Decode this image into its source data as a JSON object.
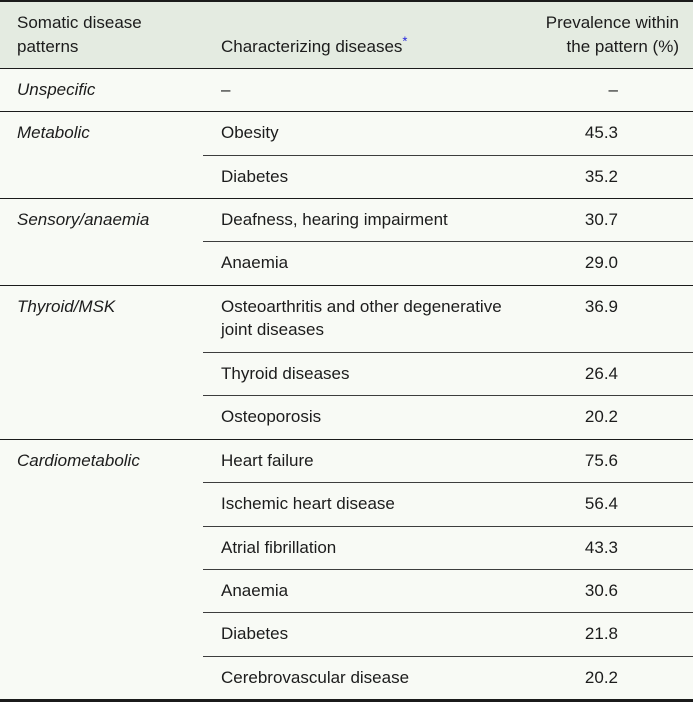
{
  "colors": {
    "header_bg": "#e4ebe1",
    "body_bg": "#f8faf5",
    "border_strong": "#1b1b1b",
    "border_inner": "#3d3d3d",
    "text": "#1c1c1c",
    "footnote_accent": "#2222dd"
  },
  "header": {
    "pattern_col": "Somatic disease patterns",
    "diseases_col": "Characterizing diseases",
    "diseases_footnote_marker": "*",
    "prevalence_col": "Prevalence within the pattern (%)"
  },
  "groups": [
    {
      "pattern": "Unspecific",
      "rows": [
        {
          "disease": "–",
          "prevalence": "–"
        }
      ]
    },
    {
      "pattern": "Metabolic",
      "rows": [
        {
          "disease": "Obesity",
          "prevalence": "45.3"
        },
        {
          "disease": "Diabetes",
          "prevalence": "35.2"
        }
      ]
    },
    {
      "pattern": "Sensory/anaemia",
      "rows": [
        {
          "disease": "Deafness, hearing impairment",
          "prevalence": "30.7"
        },
        {
          "disease": "Anaemia",
          "prevalence": "29.0"
        }
      ]
    },
    {
      "pattern": "Thyroid/MSK",
      "rows": [
        {
          "disease": "Osteoarthritis and other degenerative joint diseases",
          "prevalence": "36.9"
        },
        {
          "disease": "Thyroid diseases",
          "prevalence": "26.4"
        },
        {
          "disease": "Osteoporosis",
          "prevalence": "20.2"
        }
      ]
    },
    {
      "pattern": "Cardiometabolic",
      "rows": [
        {
          "disease": "Heart failure",
          "prevalence": "75.6"
        },
        {
          "disease": "Ischemic heart disease",
          "prevalence": "56.4"
        },
        {
          "disease": "Atrial fibrillation",
          "prevalence": "43.3"
        },
        {
          "disease": "Anaemia",
          "prevalence": "30.6"
        },
        {
          "disease": "Diabetes",
          "prevalence": "21.8"
        },
        {
          "disease": "Cerebrovascular disease",
          "prevalence": "20.2"
        }
      ]
    }
  ]
}
